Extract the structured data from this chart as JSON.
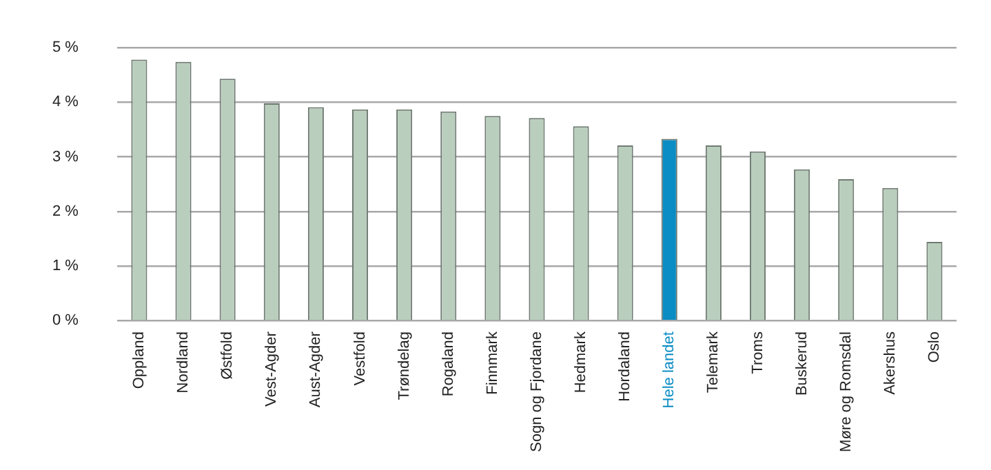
{
  "chart_data": {
    "type": "bar",
    "categories": [
      "Oppland",
      "Nordland",
      "Østfold",
      "Vest-Agder",
      "Aust-Agder",
      "Vestfold",
      "Trøndelag",
      "Rogaland",
      "Finnmark",
      "Sogn og Fjordane",
      "Hedmark",
      "Hordaland",
      "Hele landet",
      "Telemark",
      "Troms",
      "Buskerud",
      "Møre og Romsdal",
      "Akershus",
      "Oslo"
    ],
    "values": [
      4.78,
      4.74,
      4.43,
      3.98,
      3.91,
      3.87,
      3.87,
      3.83,
      3.75,
      3.71,
      3.56,
      3.21,
      3.33,
      3.21,
      3.1,
      2.77,
      2.59,
      2.43,
      1.44
    ],
    "colors": [
      "#bacebe",
      "#bacebe",
      "#bacebe",
      "#bacebe",
      "#bacebe",
      "#bacebe",
      "#bacebe",
      "#bacebe",
      "#bacebe",
      "#bacebe",
      "#bacebe",
      "#bacebe",
      "#0a8cc4",
      "#bacebe",
      "#bacebe",
      "#bacebe",
      "#bacebe",
      "#bacebe",
      "#bacebe"
    ],
    "ylim": [
      0,
      5
    ],
    "yticks": [
      {
        "value": 0,
        "label": "0 %"
      },
      {
        "value": 1,
        "label": "1 %"
      },
      {
        "value": 2,
        "label": "2 %"
      },
      {
        "value": 3,
        "label": "3 %"
      },
      {
        "value": 4,
        "label": "4 %"
      },
      {
        "value": 5,
        "label": "5 %"
      }
    ],
    "grid": "y",
    "legend": false
  }
}
